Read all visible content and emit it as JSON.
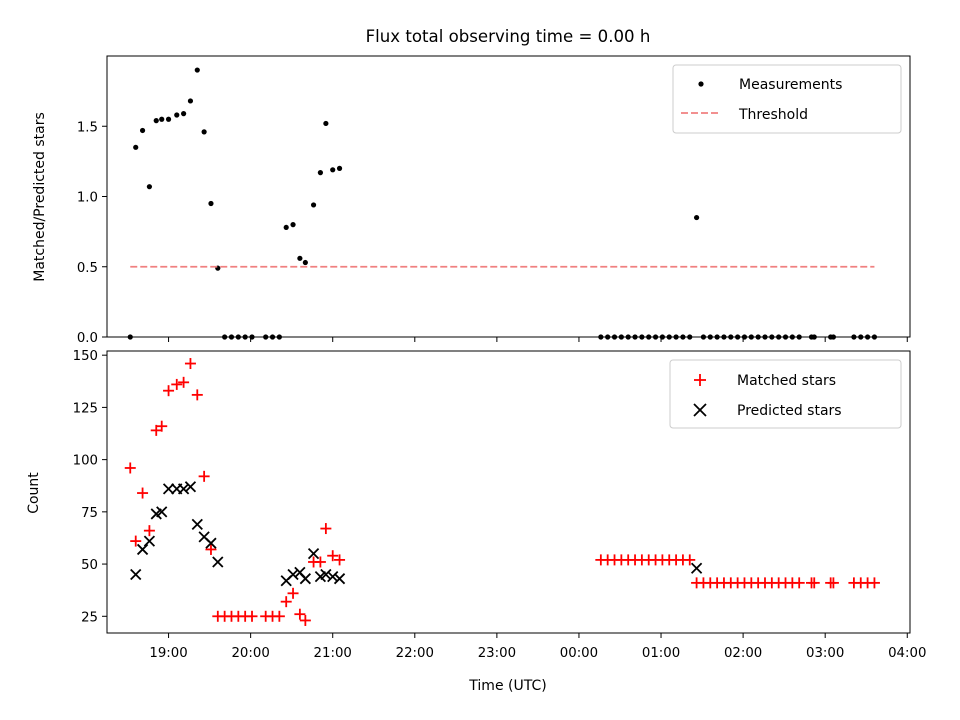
{
  "chart_data": [
    {
      "type": "scatter",
      "title": "Flux total observing time = 0.00 h",
      "ylabel": "Matched/Predicted stars",
      "xlabel": "",
      "xlim": [
        "18:15",
        "04:02"
      ],
      "ylim": [
        0,
        2.0
      ],
      "yticks": [
        "0.0",
        "0.5",
        "1.0",
        "1.5"
      ],
      "legend": {
        "position": "top-right",
        "entries": [
          "Measurements",
          "Threshold"
        ]
      },
      "colors": {
        "measurements": "#000000",
        "threshold": "#f08080"
      },
      "series": [
        {
          "name": "Measurements",
          "marker": "dot",
          "points": [
            [
              "18:32",
              0.0
            ],
            [
              "18:36",
              1.35
            ],
            [
              "18:41",
              1.47
            ],
            [
              "18:46",
              1.07
            ],
            [
              "18:51",
              1.54
            ],
            [
              "18:55",
              1.55
            ],
            [
              "19:00",
              1.55
            ],
            [
              "19:06",
              1.58
            ],
            [
              "19:11",
              1.59
            ],
            [
              "19:16",
              1.68
            ],
            [
              "19:21",
              1.9
            ],
            [
              "19:26",
              1.46
            ],
            [
              "19:31",
              0.95
            ],
            [
              "19:36",
              0.49
            ],
            [
              "19:41",
              0.0
            ],
            [
              "19:46",
              0.0
            ],
            [
              "19:51",
              0.0
            ],
            [
              "19:56",
              0.0
            ],
            [
              "20:01",
              0.0
            ],
            [
              "20:11",
              0.0
            ],
            [
              "20:16",
              0.0
            ],
            [
              "20:21",
              0.0
            ],
            [
              "20:26",
              0.78
            ],
            [
              "20:31",
              0.8
            ],
            [
              "20:36",
              0.56
            ],
            [
              "20:40",
              0.53
            ],
            [
              "20:46",
              0.94
            ],
            [
              "20:51",
              1.17
            ],
            [
              "20:55",
              1.52
            ],
            [
              "21:00",
              1.19
            ],
            [
              "21:05",
              1.2
            ],
            [
              "00:16",
              0.0
            ],
            [
              "00:21",
              0.0
            ],
            [
              "00:26",
              0.0
            ],
            [
              "00:31",
              0.0
            ],
            [
              "00:36",
              0.0
            ],
            [
              "00:41",
              0.0
            ],
            [
              "00:46",
              0.0
            ],
            [
              "00:51",
              0.0
            ],
            [
              "00:56",
              0.0
            ],
            [
              "01:01",
              0.0
            ],
            [
              "01:06",
              0.0
            ],
            [
              "01:11",
              0.0
            ],
            [
              "01:16",
              0.0
            ],
            [
              "01:21",
              0.0
            ],
            [
              "01:26",
              0.85
            ],
            [
              "01:31",
              0.0
            ],
            [
              "01:36",
              0.0
            ],
            [
              "01:41",
              0.0
            ],
            [
              "01:46",
              0.0
            ],
            [
              "01:51",
              0.0
            ],
            [
              "01:56",
              0.0
            ],
            [
              "02:01",
              0.0
            ],
            [
              "02:06",
              0.0
            ],
            [
              "02:11",
              0.0
            ],
            [
              "02:16",
              0.0
            ],
            [
              "02:21",
              0.0
            ],
            [
              "02:26",
              0.0
            ],
            [
              "02:31",
              0.0
            ],
            [
              "02:36",
              0.0
            ],
            [
              "02:41",
              0.0
            ],
            [
              "02:50",
              0.0
            ],
            [
              "02:52",
              0.0
            ],
            [
              "03:04",
              0.0
            ],
            [
              "03:06",
              0.0
            ],
            [
              "03:21",
              0.0
            ],
            [
              "03:26",
              0.0
            ],
            [
              "03:31",
              0.0
            ],
            [
              "03:36",
              0.0
            ]
          ]
        },
        {
          "name": "Threshold",
          "line": "dashed",
          "points": [
            [
              "18:32",
              0.5
            ],
            [
              "03:36",
              0.5
            ]
          ]
        }
      ]
    },
    {
      "type": "scatter",
      "title": "",
      "ylabel": "Count",
      "xlabel": "Time (UTC)",
      "xlim": [
        "18:15",
        "04:02"
      ],
      "ylim": [
        17,
        152
      ],
      "yticks": [
        "25",
        "50",
        "75",
        "100",
        "125",
        "150"
      ],
      "xticks": [
        "19:00",
        "20:00",
        "21:00",
        "22:00",
        "23:00",
        "00:00",
        "01:00",
        "02:00",
        "03:00",
        "04:00"
      ],
      "legend": {
        "position": "top-right",
        "entries": [
          "Matched stars",
          "Predicted stars"
        ]
      },
      "colors": {
        "matched": "#ff0000",
        "predicted": "#000000"
      },
      "series": [
        {
          "name": "Matched stars",
          "marker": "plus",
          "points": [
            [
              "18:32",
              96
            ],
            [
              "18:36",
              61
            ],
            [
              "18:41",
              84
            ],
            [
              "18:46",
              66
            ],
            [
              "18:51",
              114
            ],
            [
              "18:55",
              116
            ],
            [
              "19:00",
              133
            ],
            [
              "19:06",
              136
            ],
            [
              "19:11",
              137
            ],
            [
              "19:16",
              146
            ],
            [
              "19:21",
              131
            ],
            [
              "19:26",
              92
            ],
            [
              "19:31",
              57
            ],
            [
              "19:36",
              25
            ],
            [
              "19:41",
              25
            ],
            [
              "19:46",
              25
            ],
            [
              "19:51",
              25
            ],
            [
              "19:56",
              25
            ],
            [
              "20:01",
              25
            ],
            [
              "20:11",
              25
            ],
            [
              "20:16",
              25
            ],
            [
              "20:21",
              25
            ],
            [
              "20:26",
              32
            ],
            [
              "20:31",
              36
            ],
            [
              "20:36",
              26
            ],
            [
              "20:40",
              23
            ],
            [
              "20:46",
              51
            ],
            [
              "20:51",
              51
            ],
            [
              "20:55",
              67
            ],
            [
              "21:00",
              54
            ],
            [
              "21:05",
              52
            ],
            [
              "00:16",
              52
            ],
            [
              "00:21",
              52
            ],
            [
              "00:26",
              52
            ],
            [
              "00:31",
              52
            ],
            [
              "00:36",
              52
            ],
            [
              "00:41",
              52
            ],
            [
              "00:46",
              52
            ],
            [
              "00:51",
              52
            ],
            [
              "00:56",
              52
            ],
            [
              "01:01",
              52
            ],
            [
              "01:06",
              52
            ],
            [
              "01:11",
              52
            ],
            [
              "01:16",
              52
            ],
            [
              "01:21",
              52
            ],
            [
              "01:26",
              41
            ],
            [
              "01:31",
              41
            ],
            [
              "01:36",
              41
            ],
            [
              "01:41",
              41
            ],
            [
              "01:46",
              41
            ],
            [
              "01:51",
              41
            ],
            [
              "01:56",
              41
            ],
            [
              "02:01",
              41
            ],
            [
              "02:06",
              41
            ],
            [
              "02:11",
              41
            ],
            [
              "02:16",
              41
            ],
            [
              "02:21",
              41
            ],
            [
              "02:26",
              41
            ],
            [
              "02:31",
              41
            ],
            [
              "02:36",
              41
            ],
            [
              "02:41",
              41
            ],
            [
              "02:50",
              41
            ],
            [
              "02:52",
              41
            ],
            [
              "03:04",
              41
            ],
            [
              "03:06",
              41
            ],
            [
              "03:21",
              41
            ],
            [
              "03:26",
              41
            ],
            [
              "03:31",
              41
            ],
            [
              "03:36",
              41
            ]
          ]
        },
        {
          "name": "Predicted stars",
          "marker": "x",
          "points": [
            [
              "18:36",
              45
            ],
            [
              "18:41",
              57
            ],
            [
              "18:46",
              61
            ],
            [
              "18:51",
              74
            ],
            [
              "18:55",
              75
            ],
            [
              "19:00",
              86
            ],
            [
              "19:06",
              86
            ],
            [
              "19:11",
              86
            ],
            [
              "19:16",
              87
            ],
            [
              "19:21",
              69
            ],
            [
              "19:26",
              63
            ],
            [
              "19:31",
              60
            ],
            [
              "19:36",
              51
            ],
            [
              "20:26",
              42
            ],
            [
              "20:31",
              45
            ],
            [
              "20:36",
              46
            ],
            [
              "20:40",
              43
            ],
            [
              "20:46",
              55
            ],
            [
              "20:51",
              44
            ],
            [
              "20:55",
              45
            ],
            [
              "21:00",
              44
            ],
            [
              "21:05",
              43
            ],
            [
              "01:26",
              48
            ]
          ]
        }
      ]
    }
  ]
}
